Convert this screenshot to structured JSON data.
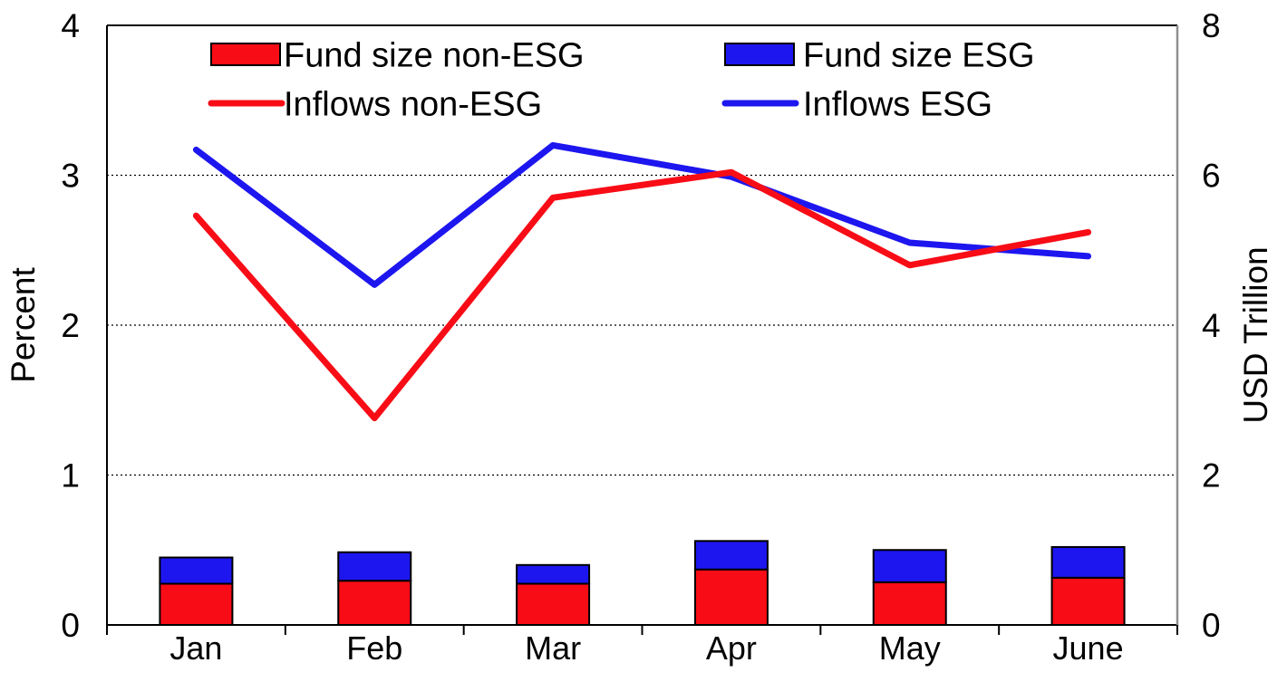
{
  "chart_data": {
    "type": "combo-bar-line",
    "categories": [
      "Jan",
      "Feb",
      "Mar",
      "Apr",
      "May",
      "June"
    ],
    "left_axis": {
      "label": "Percent",
      "ticks": [
        "0",
        "1",
        "2",
        "3",
        "4"
      ],
      "range": [
        0,
        4
      ]
    },
    "right_axis": {
      "label": "USD Trillion",
      "ticks": [
        "0",
        "2",
        "4",
        "6",
        "8"
      ],
      "range": [
        0,
        8
      ]
    },
    "grid": {
      "at_left_values": [
        1,
        2,
        3
      ],
      "style": "dotted",
      "on": true
    },
    "bar_series": [
      {
        "name": "Fund size non-ESG",
        "axis": "right",
        "color": "#f80c16",
        "values": [
          0.55,
          0.59,
          0.55,
          0.74,
          0.57,
          0.63
        ]
      },
      {
        "name": "Fund size ESG",
        "axis": "right",
        "color": "#1d16ef",
        "values": [
          0.35,
          0.38,
          0.25,
          0.38,
          0.43,
          0.41
        ]
      }
    ],
    "line_series": [
      {
        "name": "Inflows ESG",
        "axis": "left",
        "color": "#1d16ef",
        "values": [
          3.17,
          2.27,
          3.2,
          2.99,
          2.55,
          2.46
        ]
      },
      {
        "name": "Inflows non-ESG",
        "axis": "left",
        "color": "#f80c16",
        "values": [
          2.73,
          1.38,
          2.85,
          3.02,
          2.4,
          2.62
        ]
      }
    ],
    "legend": {
      "position": "top",
      "items": [
        {
          "label": "Fund size non-ESG",
          "swatch": "rect",
          "color": "#f80c16",
          "row": 0,
          "col": 0
        },
        {
          "label": "Fund size ESG",
          "swatch": "rect",
          "color": "#1d16ef",
          "row": 0,
          "col": 1
        },
        {
          "label": "Inflows non-ESG",
          "swatch": "line",
          "color": "#f80c16",
          "row": 1,
          "col": 0
        },
        {
          "label": "Inflows ESG",
          "swatch": "line",
          "color": "#1d16ef",
          "row": 1,
          "col": 1
        }
      ]
    }
  },
  "colors": {
    "non_esg": "#f80c16",
    "esg": "#1d16ef",
    "axis_line": "#000000",
    "right_axis_line": "#8f8f8f",
    "gridline": "#000000",
    "background": "#ffffff"
  }
}
